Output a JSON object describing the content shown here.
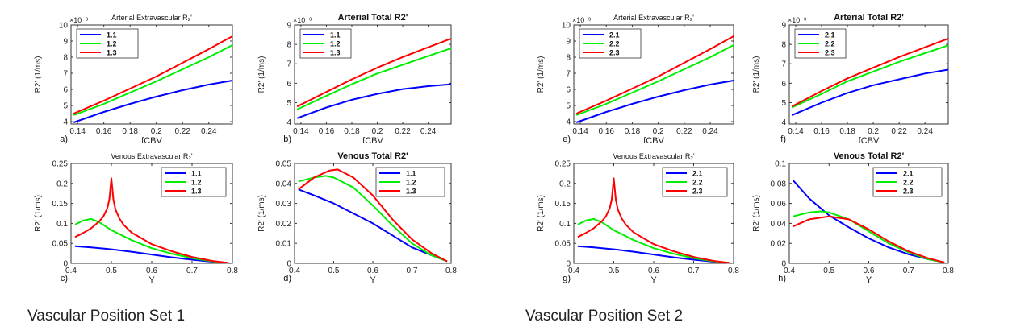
{
  "chart_data": [
    {
      "type": "line",
      "panel_label": "a)",
      "title": "Arterial Extravascular R₂'",
      "xlabel": "fCBV",
      "ylabel": "R2' (1/ms)",
      "y_exponent": "×10⁻³",
      "xlim": [
        0.135,
        0.258
      ],
      "ylim": [
        3.85,
        10
      ],
      "xticks": [
        0.14,
        0.16,
        0.18,
        0.2,
        0.22,
        0.24
      ],
      "xtick_labels": [
        "0.14",
        "0.16",
        "0.18",
        "0.2",
        "0.22",
        "0.24"
      ],
      "yticks": [
        4,
        5,
        6,
        7,
        8,
        9,
        10
      ],
      "ytick_labels": [
        "4",
        "5",
        "6",
        "7",
        "8",
        "9",
        "10"
      ],
      "series": [
        {
          "name": "1.1",
          "color": "#0000ff",
          "x": [
            0.137,
            0.16,
            0.18,
            0.2,
            0.22,
            0.24,
            0.258
          ],
          "values": [
            3.95,
            4.6,
            5.1,
            5.55,
            5.95,
            6.3,
            6.55
          ]
        },
        {
          "name": "1.2",
          "color": "#00ee00",
          "x": [
            0.137,
            0.16,
            0.18,
            0.2,
            0.22,
            0.24,
            0.258
          ],
          "values": [
            4.4,
            5.1,
            5.8,
            6.5,
            7.25,
            8.0,
            8.75
          ]
        },
        {
          "name": "1.3",
          "color": "#ff0000",
          "x": [
            0.137,
            0.16,
            0.18,
            0.2,
            0.22,
            0.24,
            0.258
          ],
          "values": [
            4.5,
            5.3,
            6.05,
            6.8,
            7.65,
            8.5,
            9.3
          ]
        }
      ]
    },
    {
      "type": "line",
      "panel_label": "b)",
      "title": "Arterial Total R2'",
      "xlabel": "fCBV",
      "ylabel": "R2' (1/ms)",
      "y_exponent": "×10⁻³",
      "xlim": [
        0.135,
        0.258
      ],
      "ylim": [
        3.9,
        9
      ],
      "xticks": [
        0.14,
        0.16,
        0.18,
        0.2,
        0.22,
        0.24
      ],
      "xtick_labels": [
        "0.14",
        "0.16",
        "0.18",
        "0.2",
        "0.22",
        "0.24"
      ],
      "yticks": [
        4,
        5,
        6,
        7,
        8,
        9
      ],
      "ytick_labels": [
        "4",
        "5",
        "6",
        "7",
        "8",
        "9"
      ],
      "series": [
        {
          "name": "1.1",
          "color": "#0000ff",
          "x": [
            0.137,
            0.16,
            0.18,
            0.2,
            0.22,
            0.24,
            0.258
          ],
          "values": [
            4.2,
            4.75,
            5.15,
            5.45,
            5.7,
            5.85,
            5.95
          ]
        },
        {
          "name": "1.2",
          "color": "#00ee00",
          "x": [
            0.137,
            0.16,
            0.18,
            0.2,
            0.22,
            0.24,
            0.258
          ],
          "values": [
            4.65,
            5.35,
            5.95,
            6.5,
            6.95,
            7.4,
            7.8
          ]
        },
        {
          "name": "1.3",
          "color": "#ff0000",
          "x": [
            0.137,
            0.16,
            0.18,
            0.2,
            0.22,
            0.24,
            0.258
          ],
          "values": [
            4.8,
            5.55,
            6.2,
            6.8,
            7.35,
            7.85,
            8.3
          ]
        }
      ]
    },
    {
      "type": "line",
      "panel_label": "e)",
      "title": "Arterial Extravascular R₂'",
      "xlabel": "fCBV",
      "ylabel": "R2' (1/ms)",
      "y_exponent": "×10⁻³",
      "xlim": [
        0.135,
        0.258
      ],
      "ylim": [
        3.85,
        10
      ],
      "xticks": [
        0.14,
        0.16,
        0.18,
        0.2,
        0.22,
        0.24
      ],
      "xtick_labels": [
        "0.14",
        "0.16",
        "0.18",
        "0.2",
        "0.22",
        "0.24"
      ],
      "yticks": [
        4,
        5,
        6,
        7,
        8,
        9,
        10
      ],
      "ytick_labels": [
        "4",
        "5",
        "6",
        "7",
        "8",
        "9",
        "10"
      ],
      "series": [
        {
          "name": "2.1",
          "color": "#0000ff",
          "x": [
            0.137,
            0.16,
            0.18,
            0.2,
            0.22,
            0.24,
            0.258
          ],
          "values": [
            3.95,
            4.6,
            5.1,
            5.55,
            5.95,
            6.3,
            6.55
          ]
        },
        {
          "name": "2.2",
          "color": "#00ee00",
          "x": [
            0.137,
            0.16,
            0.18,
            0.2,
            0.22,
            0.24,
            0.258
          ],
          "values": [
            4.4,
            5.1,
            5.8,
            6.5,
            7.25,
            8.0,
            8.75
          ]
        },
        {
          "name": "2.3",
          "color": "#ff0000",
          "x": [
            0.137,
            0.16,
            0.18,
            0.2,
            0.22,
            0.24,
            0.258
          ],
          "values": [
            4.5,
            5.3,
            6.05,
            6.8,
            7.65,
            8.5,
            9.3
          ]
        }
      ]
    },
    {
      "type": "line",
      "panel_label": "f)",
      "title": "Arterial Total R2'",
      "xlabel": "fCBV",
      "ylabel": "R2' (1/ms)",
      "y_exponent": "×10⁻³",
      "xlim": [
        0.135,
        0.258
      ],
      "ylim": [
        3.9,
        9
      ],
      "xticks": [
        0.14,
        0.16,
        0.18,
        0.2,
        0.22,
        0.24
      ],
      "xtick_labels": [
        "0.14",
        "0.16",
        "0.18",
        "0.2",
        "0.22",
        "0.24"
      ],
      "yticks": [
        4,
        5,
        6,
        7,
        8,
        9
      ],
      "ytick_labels": [
        "4",
        "5",
        "6",
        "7",
        "8",
        "9"
      ],
      "series": [
        {
          "name": "2.1",
          "color": "#0000ff",
          "x": [
            0.137,
            0.16,
            0.18,
            0.2,
            0.22,
            0.24,
            0.258
          ],
          "values": [
            4.35,
            5.0,
            5.5,
            5.9,
            6.2,
            6.5,
            6.7
          ]
        },
        {
          "name": "2.2",
          "color": "#00ee00",
          "x": [
            0.137,
            0.16,
            0.18,
            0.2,
            0.22,
            0.24,
            0.258
          ],
          "values": [
            4.75,
            5.45,
            6.1,
            6.6,
            7.1,
            7.55,
            7.95
          ]
        },
        {
          "name": "2.3",
          "color": "#ff0000",
          "x": [
            0.137,
            0.16,
            0.18,
            0.2,
            0.22,
            0.24,
            0.258
          ],
          "values": [
            4.8,
            5.6,
            6.25,
            6.8,
            7.35,
            7.85,
            8.3
          ]
        }
      ]
    },
    {
      "type": "line",
      "panel_label": "c)",
      "title": "Venous Extravascular R₂'",
      "xlabel": "Y",
      "ylabel": "R2' (1/ms)",
      "xlim": [
        0.4,
        0.8
      ],
      "ylim": [
        0,
        0.25
      ],
      "xticks": [
        0.4,
        0.5,
        0.6,
        0.7,
        0.8
      ],
      "xtick_labels": [
        "0.4",
        "0.5",
        "0.6",
        "0.7",
        "0.8"
      ],
      "yticks": [
        0,
        0.05,
        0.1,
        0.15,
        0.2,
        0.25
      ],
      "ytick_labels": [
        "0",
        "0.05",
        "0.1",
        "0.15",
        "0.2",
        "0.25"
      ],
      "series": [
        {
          "name": "1.1",
          "color": "#0000ff",
          "x": [
            0.41,
            0.45,
            0.5,
            0.55,
            0.6,
            0.65,
            0.7,
            0.75,
            0.79
          ],
          "values": [
            0.043,
            0.04,
            0.035,
            0.029,
            0.022,
            0.015,
            0.009,
            0.004,
            0.001
          ]
        },
        {
          "name": "1.2",
          "color": "#00ee00",
          "x": [
            0.41,
            0.43,
            0.45,
            0.47,
            0.5,
            0.55,
            0.6,
            0.65,
            0.7,
            0.75,
            0.79
          ],
          "values": [
            0.097,
            0.107,
            0.111,
            0.103,
            0.083,
            0.058,
            0.038,
            0.024,
            0.013,
            0.005,
            0.001
          ]
        },
        {
          "name": "1.3",
          "color": "#ff0000",
          "x": [
            0.41,
            0.43,
            0.45,
            0.47,
            0.48,
            0.49,
            0.495,
            0.5,
            0.505,
            0.51,
            0.52,
            0.53,
            0.55,
            0.6,
            0.65,
            0.7,
            0.75,
            0.79
          ],
          "values": [
            0.066,
            0.076,
            0.088,
            0.105,
            0.117,
            0.138,
            0.16,
            0.213,
            0.16,
            0.135,
            0.112,
            0.097,
            0.077,
            0.048,
            0.03,
            0.016,
            0.006,
            0.001
          ]
        }
      ]
    },
    {
      "type": "line",
      "panel_label": "d)",
      "title": "Venous Total R2'",
      "xlabel": "Y",
      "ylabel": "R2' (1/ms)",
      "xlim": [
        0.4,
        0.8
      ],
      "ylim": [
        0,
        0.05
      ],
      "xticks": [
        0.4,
        0.5,
        0.6,
        0.7,
        0.8
      ],
      "xtick_labels": [
        "0.4",
        "0.5",
        "0.6",
        "0.7",
        "0.8"
      ],
      "yticks": [
        0,
        0.01,
        0.02,
        0.03,
        0.04,
        0.05
      ],
      "ytick_labels": [
        "0",
        "0.01",
        "0.02",
        "0.03",
        "0.04",
        "0.05"
      ],
      "series": [
        {
          "name": "1.1",
          "color": "#0000ff",
          "x": [
            0.41,
            0.45,
            0.5,
            0.55,
            0.6,
            0.65,
            0.7,
            0.75,
            0.79
          ],
          "values": [
            0.037,
            0.034,
            0.03,
            0.025,
            0.02,
            0.014,
            0.008,
            0.004,
            0.001
          ]
        },
        {
          "name": "1.2",
          "color": "#00ee00",
          "x": [
            0.41,
            0.45,
            0.48,
            0.5,
            0.55,
            0.6,
            0.65,
            0.7,
            0.75,
            0.79
          ],
          "values": [
            0.041,
            0.043,
            0.0438,
            0.043,
            0.038,
            0.029,
            0.019,
            0.01,
            0.004,
            0.001
          ]
        },
        {
          "name": "1.3",
          "color": "#ff0000",
          "x": [
            0.41,
            0.45,
            0.49,
            0.51,
            0.55,
            0.6,
            0.65,
            0.7,
            0.75,
            0.79
          ],
          "values": [
            0.037,
            0.043,
            0.0465,
            0.047,
            0.043,
            0.034,
            0.022,
            0.012,
            0.005,
            0.001
          ]
        }
      ]
    },
    {
      "type": "line",
      "panel_label": "g)",
      "title": "Venous Extravascular R₂'",
      "xlabel": "Y",
      "ylabel": "R2' (1/ms)",
      "xlim": [
        0.4,
        0.8
      ],
      "ylim": [
        0,
        0.25
      ],
      "xticks": [
        0.4,
        0.5,
        0.6,
        0.7,
        0.8
      ],
      "xtick_labels": [
        "0.4",
        "0.5",
        "0.6",
        "0.7",
        "0.8"
      ],
      "yticks": [
        0,
        0.05,
        0.1,
        0.15,
        0.2,
        0.25
      ],
      "ytick_labels": [
        "0",
        "0.05",
        "0.1",
        "0.15",
        "0.2",
        "0.25"
      ],
      "series": [
        {
          "name": "2.1",
          "color": "#0000ff",
          "x": [
            0.41,
            0.45,
            0.5,
            0.55,
            0.6,
            0.65,
            0.7,
            0.75,
            0.79
          ],
          "values": [
            0.043,
            0.04,
            0.035,
            0.029,
            0.022,
            0.015,
            0.009,
            0.004,
            0.001
          ]
        },
        {
          "name": "2.2",
          "color": "#00ee00",
          "x": [
            0.41,
            0.43,
            0.45,
            0.47,
            0.5,
            0.55,
            0.6,
            0.65,
            0.7,
            0.75,
            0.79
          ],
          "values": [
            0.097,
            0.107,
            0.111,
            0.103,
            0.083,
            0.058,
            0.038,
            0.024,
            0.013,
            0.005,
            0.001
          ]
        },
        {
          "name": "2.3",
          "color": "#ff0000",
          "x": [
            0.41,
            0.43,
            0.45,
            0.47,
            0.48,
            0.49,
            0.495,
            0.5,
            0.505,
            0.51,
            0.52,
            0.53,
            0.55,
            0.6,
            0.65,
            0.7,
            0.75,
            0.79
          ],
          "values": [
            0.066,
            0.076,
            0.088,
            0.105,
            0.117,
            0.138,
            0.16,
            0.213,
            0.16,
            0.135,
            0.112,
            0.097,
            0.077,
            0.048,
            0.03,
            0.016,
            0.006,
            0.001
          ]
        }
      ]
    },
    {
      "type": "line",
      "panel_label": "h)",
      "title": "Venous Total R2'",
      "xlabel": "Y",
      "ylabel": "R2' (1/ms)",
      "xlim": [
        0.4,
        0.8
      ],
      "ylim": [
        0,
        0.1
      ],
      "xticks": [
        0.4,
        0.5,
        0.6,
        0.7,
        0.8
      ],
      "xtick_labels": [
        "0.4",
        "0.5",
        "0.6",
        "0.7",
        "0.8"
      ],
      "yticks": [
        0,
        0.02,
        0.04,
        0.06,
        0.08,
        0.1
      ],
      "ytick_labels": [
        "0",
        "0.02",
        "0.04",
        "0.06",
        "0.08",
        "0.1"
      ],
      "series": [
        {
          "name": "2.1",
          "color": "#0000ff",
          "x": [
            0.41,
            0.45,
            0.5,
            0.55,
            0.6,
            0.65,
            0.7,
            0.75,
            0.79
          ],
          "values": [
            0.083,
            0.065,
            0.048,
            0.036,
            0.025,
            0.016,
            0.009,
            0.004,
            0.001
          ]
        },
        {
          "name": "2.2",
          "color": "#00ee00",
          "x": [
            0.41,
            0.45,
            0.48,
            0.5,
            0.55,
            0.6,
            0.65,
            0.7,
            0.75,
            0.79
          ],
          "values": [
            0.047,
            0.051,
            0.052,
            0.051,
            0.044,
            0.032,
            0.02,
            0.011,
            0.004,
            0.001
          ]
        },
        {
          "name": "2.3",
          "color": "#ff0000",
          "x": [
            0.41,
            0.45,
            0.5,
            0.55,
            0.6,
            0.65,
            0.7,
            0.75,
            0.79
          ],
          "values": [
            0.037,
            0.044,
            0.047,
            0.044,
            0.034,
            0.022,
            0.012,
            0.005,
            0.001
          ]
        }
      ]
    }
  ],
  "captions": {
    "set1": "Vascular Position Set 1",
    "set2": "Vascular Position Set 2"
  }
}
